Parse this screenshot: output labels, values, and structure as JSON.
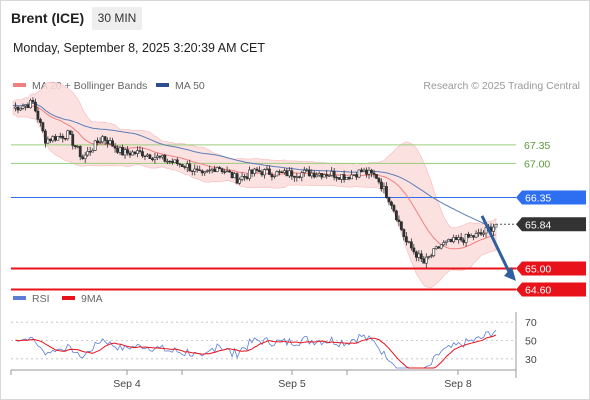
{
  "header": {
    "title": "Brent (ICE)",
    "timeframe": "30 MIN"
  },
  "timestamp": "Monday, September 8, 2025 3:20:39 AM CET",
  "legend": {
    "ma20_bb": "MA 20 + Bollinger Bands",
    "ma50": "MA 50",
    "rsi": "RSI",
    "nine_ma": "9MA"
  },
  "credit": "Research © 2025 Trading Central",
  "colors": {
    "candle": "#2f2f2f",
    "bollinger_fill": "#fcdcdc",
    "ma20": "#f08080",
    "ma50": "#5b7db8",
    "green_level": "#9acd7a",
    "blue_level": "#2e6ff2",
    "red_level": "#e8121a",
    "pivot_tag": "#333333",
    "arrow": "#2f5f9e",
    "rsi": "#5b7fd6",
    "rsi_ma": "#e8121a"
  },
  "chart_data": [
    {
      "type": "candlestick",
      "x": [
        "Sep 4",
        "Sep 5",
        "Sep 8"
      ],
      "ylim": [
        64.4,
        68.3
      ],
      "levels": [
        {
          "value": 67.35,
          "label": "67.35",
          "kind": "resistance"
        },
        {
          "value": 67.0,
          "label": "67.00",
          "kind": "resistance"
        },
        {
          "value": 66.35,
          "label": "66.35",
          "kind": "pivot"
        },
        {
          "value": 65.0,
          "label": "65.00",
          "kind": "support"
        },
        {
          "value": 64.6,
          "label": "64.60",
          "kind": "support"
        }
      ],
      "last_price": {
        "value": 65.84,
        "label": "65.84"
      },
      "series": [
        {
          "name": "MA 20 + Bollinger Bands",
          "kind": "band"
        },
        {
          "name": "MA 50",
          "kind": "line"
        }
      ]
    },
    {
      "type": "line",
      "y_ticks": [
        70,
        50,
        30
      ],
      "ylim": [
        20,
        80
      ],
      "series": [
        {
          "name": "RSI"
        },
        {
          "name": "9MA"
        }
      ]
    }
  ]
}
